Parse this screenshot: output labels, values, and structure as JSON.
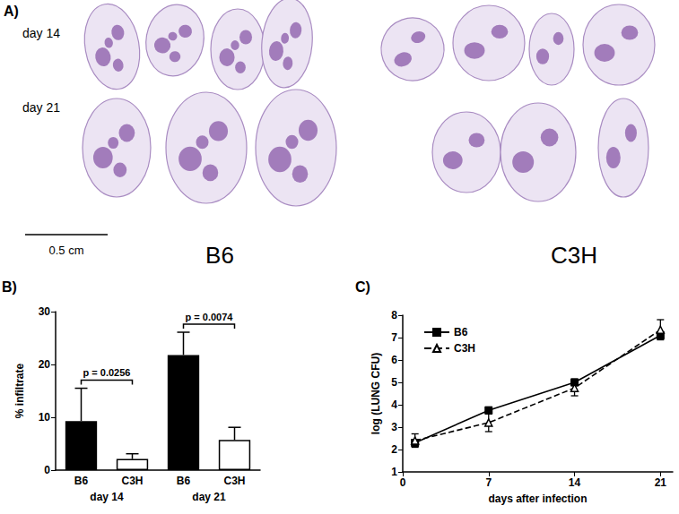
{
  "panel_a": {
    "label": "A)",
    "row_labels": [
      "day 14",
      "day 21"
    ],
    "scale_bar": "0.5 cm",
    "strain_labels": [
      "B6",
      "C3H"
    ]
  },
  "chart_data": [
    {
      "type": "bar",
      "panel_label": "B)",
      "y_label": "% infiltrate",
      "categories": [
        "B6",
        "C3H",
        "B6",
        "C3H"
      ],
      "groups": [
        "day 14",
        "day 21"
      ],
      "values": [
        9.3,
        2.1,
        21.8,
        5.7
      ],
      "errors": [
        6.2,
        1.0,
        4.3,
        2.4
      ],
      "colors": [
        "#000000",
        "#ffffff",
        "#000000",
        "#ffffff"
      ],
      "ylim": [
        0,
        30
      ],
      "yticks": [
        0,
        10,
        20,
        30
      ],
      "grid": false,
      "annotations": [
        {
          "text": "p = 0.0256",
          "from": 0,
          "to": 1
        },
        {
          "text": "p = 0.0074",
          "from": 2,
          "to": 3
        }
      ]
    },
    {
      "type": "line",
      "panel_label": "C)",
      "x_label": "days after infection",
      "y_label": "log (LUNG CFU)",
      "x": [
        1,
        7,
        14,
        21
      ],
      "series": [
        {
          "name": "B6",
          "color": "#000000",
          "marker": "square",
          "line_style": "solid",
          "values": [
            2.3,
            3.75,
            5.0,
            7.1
          ],
          "errors": [
            0.15,
            0.15,
            0.15,
            0.15
          ]
        },
        {
          "name": "C3H",
          "color": "#000000",
          "marker": "triangle-open",
          "line_style": "dashed",
          "values": [
            2.4,
            3.2,
            4.75,
            7.35
          ],
          "errors": [
            0.3,
            0.4,
            0.35,
            0.45
          ]
        }
      ],
      "xlim": [
        0,
        22
      ],
      "xticks": [
        0,
        7,
        14,
        21
      ],
      "ylim": [
        1,
        8
      ],
      "yticks": [
        1,
        2,
        3,
        4,
        5,
        6,
        7,
        8
      ],
      "grid": false,
      "legend": "upper left"
    }
  ]
}
